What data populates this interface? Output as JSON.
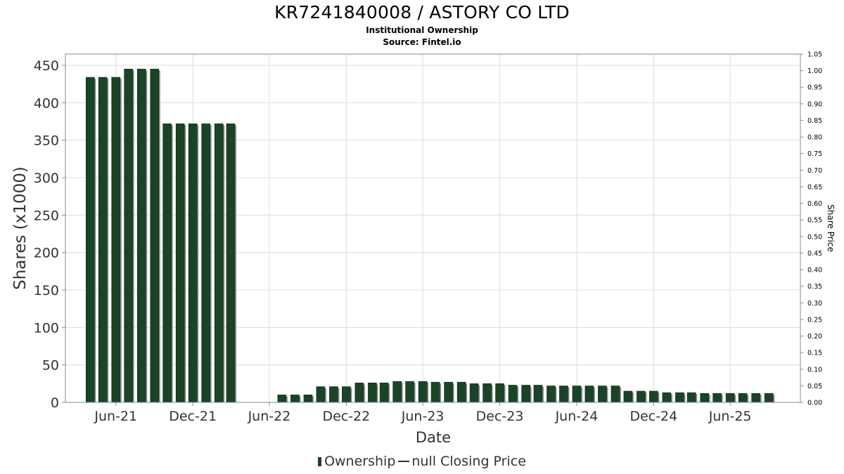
{
  "title": "KR7241840008 / ASTORY CO LTD",
  "subtitle": "Institutional Ownership",
  "source": "Source: Fintel.io",
  "legend": {
    "ownership": "Ownership",
    "price": "null Closing Price"
  },
  "colors": {
    "bar": "#1a4426",
    "bar_shadow": "#8a8a8a",
    "grid": "#dddddd"
  },
  "chart_data": {
    "type": "bar",
    "title": "KR7241840008 / ASTORY CO LTD",
    "subtitle": "Institutional Ownership",
    "xlabel": "Date",
    "ylabel": "Shares (x1000)",
    "y2label": "Share Price",
    "ylim": [
      0,
      465
    ],
    "y2lim": [
      0,
      1.05
    ],
    "grid": true,
    "legend_position": "bottom",
    "yticks": [
      0,
      50,
      100,
      150,
      200,
      250,
      300,
      350,
      400,
      450
    ],
    "y2ticks": [
      "0.00",
      "0.05",
      "0.10",
      "0.15",
      "0.20",
      "0.25",
      "0.30",
      "0.35",
      "0.40",
      "0.45",
      "0.50",
      "0.55",
      "0.60",
      "0.65",
      "0.70",
      "0.75",
      "0.80",
      "0.85",
      "0.90",
      "0.95",
      "1.00",
      "1.05"
    ],
    "xticks": [
      "Jun-21",
      "Dec-21",
      "Jun-22",
      "Dec-22",
      "Jun-23",
      "Dec-23",
      "Jun-24",
      "Dec-24",
      "Jun-25"
    ],
    "x_domain": [
      "2021-02-01",
      "2025-11-15"
    ],
    "series": [
      {
        "name": "Ownership",
        "points": [
          {
            "date": "2021-04-01",
            "value": 434
          },
          {
            "date": "2021-05-01",
            "value": 434
          },
          {
            "date": "2021-06-01",
            "value": 434
          },
          {
            "date": "2021-07-01",
            "value": 445
          },
          {
            "date": "2021-08-01",
            "value": 445
          },
          {
            "date": "2021-09-01",
            "value": 445
          },
          {
            "date": "2021-10-01",
            "value": 372
          },
          {
            "date": "2021-11-01",
            "value": 372
          },
          {
            "date": "2021-12-01",
            "value": 372
          },
          {
            "date": "2022-01-01",
            "value": 372
          },
          {
            "date": "2022-02-01",
            "value": 372
          },
          {
            "date": "2022-03-01",
            "value": 372
          },
          {
            "date": "2022-07-01",
            "value": 10
          },
          {
            "date": "2022-08-01",
            "value": 10
          },
          {
            "date": "2022-09-01",
            "value": 10
          },
          {
            "date": "2022-10-01",
            "value": 21
          },
          {
            "date": "2022-11-01",
            "value": 21
          },
          {
            "date": "2022-12-01",
            "value": 21
          },
          {
            "date": "2023-01-01",
            "value": 26
          },
          {
            "date": "2023-02-01",
            "value": 26
          },
          {
            "date": "2023-03-01",
            "value": 26
          },
          {
            "date": "2023-04-01",
            "value": 28
          },
          {
            "date": "2023-05-01",
            "value": 28
          },
          {
            "date": "2023-06-01",
            "value": 28
          },
          {
            "date": "2023-07-01",
            "value": 27
          },
          {
            "date": "2023-08-01",
            "value": 27
          },
          {
            "date": "2023-09-01",
            "value": 27
          },
          {
            "date": "2023-10-01",
            "value": 25
          },
          {
            "date": "2023-11-01",
            "value": 25
          },
          {
            "date": "2023-12-01",
            "value": 25
          },
          {
            "date": "2024-01-01",
            "value": 23
          },
          {
            "date": "2024-02-01",
            "value": 23
          },
          {
            "date": "2024-03-01",
            "value": 23
          },
          {
            "date": "2024-04-01",
            "value": 22
          },
          {
            "date": "2024-05-01",
            "value": 22
          },
          {
            "date": "2024-06-01",
            "value": 22
          },
          {
            "date": "2024-07-01",
            "value": 22
          },
          {
            "date": "2024-08-01",
            "value": 22
          },
          {
            "date": "2024-09-01",
            "value": 22
          },
          {
            "date": "2024-10-01",
            "value": 15
          },
          {
            "date": "2024-11-01",
            "value": 15
          },
          {
            "date": "2024-12-01",
            "value": 15
          },
          {
            "date": "2025-01-01",
            "value": 13
          },
          {
            "date": "2025-02-01",
            "value": 13
          },
          {
            "date": "2025-03-01",
            "value": 13
          },
          {
            "date": "2025-04-01",
            "value": 12
          },
          {
            "date": "2025-05-01",
            "value": 12
          },
          {
            "date": "2025-06-01",
            "value": 12
          },
          {
            "date": "2025-07-01",
            "value": 12
          },
          {
            "date": "2025-08-01",
            "value": 12
          },
          {
            "date": "2025-09-01",
            "value": 12
          }
        ]
      }
    ]
  }
}
